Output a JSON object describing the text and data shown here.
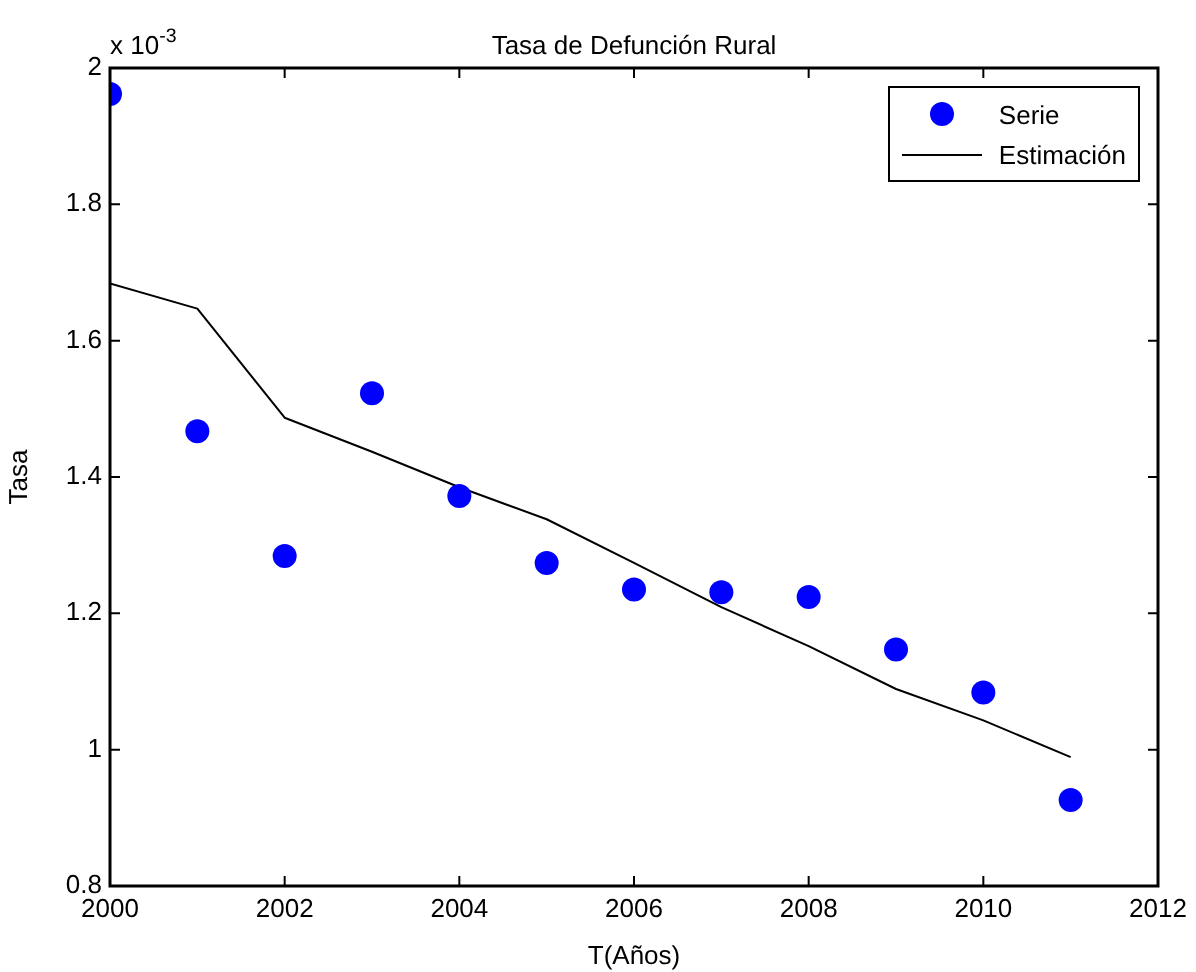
{
  "chart_data": {
    "type": "scatter",
    "title": "Tasa de Defunción Rural",
    "xlabel": "T(Años)",
    "ylabel": "Tasa",
    "annotations": [
      "x 10$^{-3}$"
    ],
    "x": [
      2000,
      2001,
      2002,
      2003,
      2004,
      2005,
      2006,
      2007,
      2008,
      2009,
      2010,
      2011
    ],
    "series": [
      {
        "name": "Serie",
        "type": "scatter",
        "color": "#0000ff",
        "marker": "circle",
        "values": [
          1.962,
          1.467,
          1.284,
          1.523,
          1.372,
          1.274,
          1.235,
          1.231,
          1.224,
          1.147,
          1.084,
          0.926
        ]
      },
      {
        "name": "Estimación",
        "type": "line",
        "color": "#000000",
        "marker": "none",
        "line_style": "solid",
        "values": [
          1.684,
          1.647,
          1.487,
          1.437,
          1.385,
          1.338,
          1.274,
          1.209,
          1.152,
          1.089,
          1.043,
          0.989
        ]
      }
    ],
    "xlim": [
      2000,
      2012
    ],
    "xticks": [
      2000,
      2002,
      2004,
      2006,
      2008,
      2010,
      2012
    ],
    "ylim": [
      0.8,
      2
    ],
    "yticks": [
      0.8,
      1,
      1.2,
      1.4,
      1.6,
      1.8,
      2
    ],
    "grid": false,
    "legend": "top right"
  }
}
